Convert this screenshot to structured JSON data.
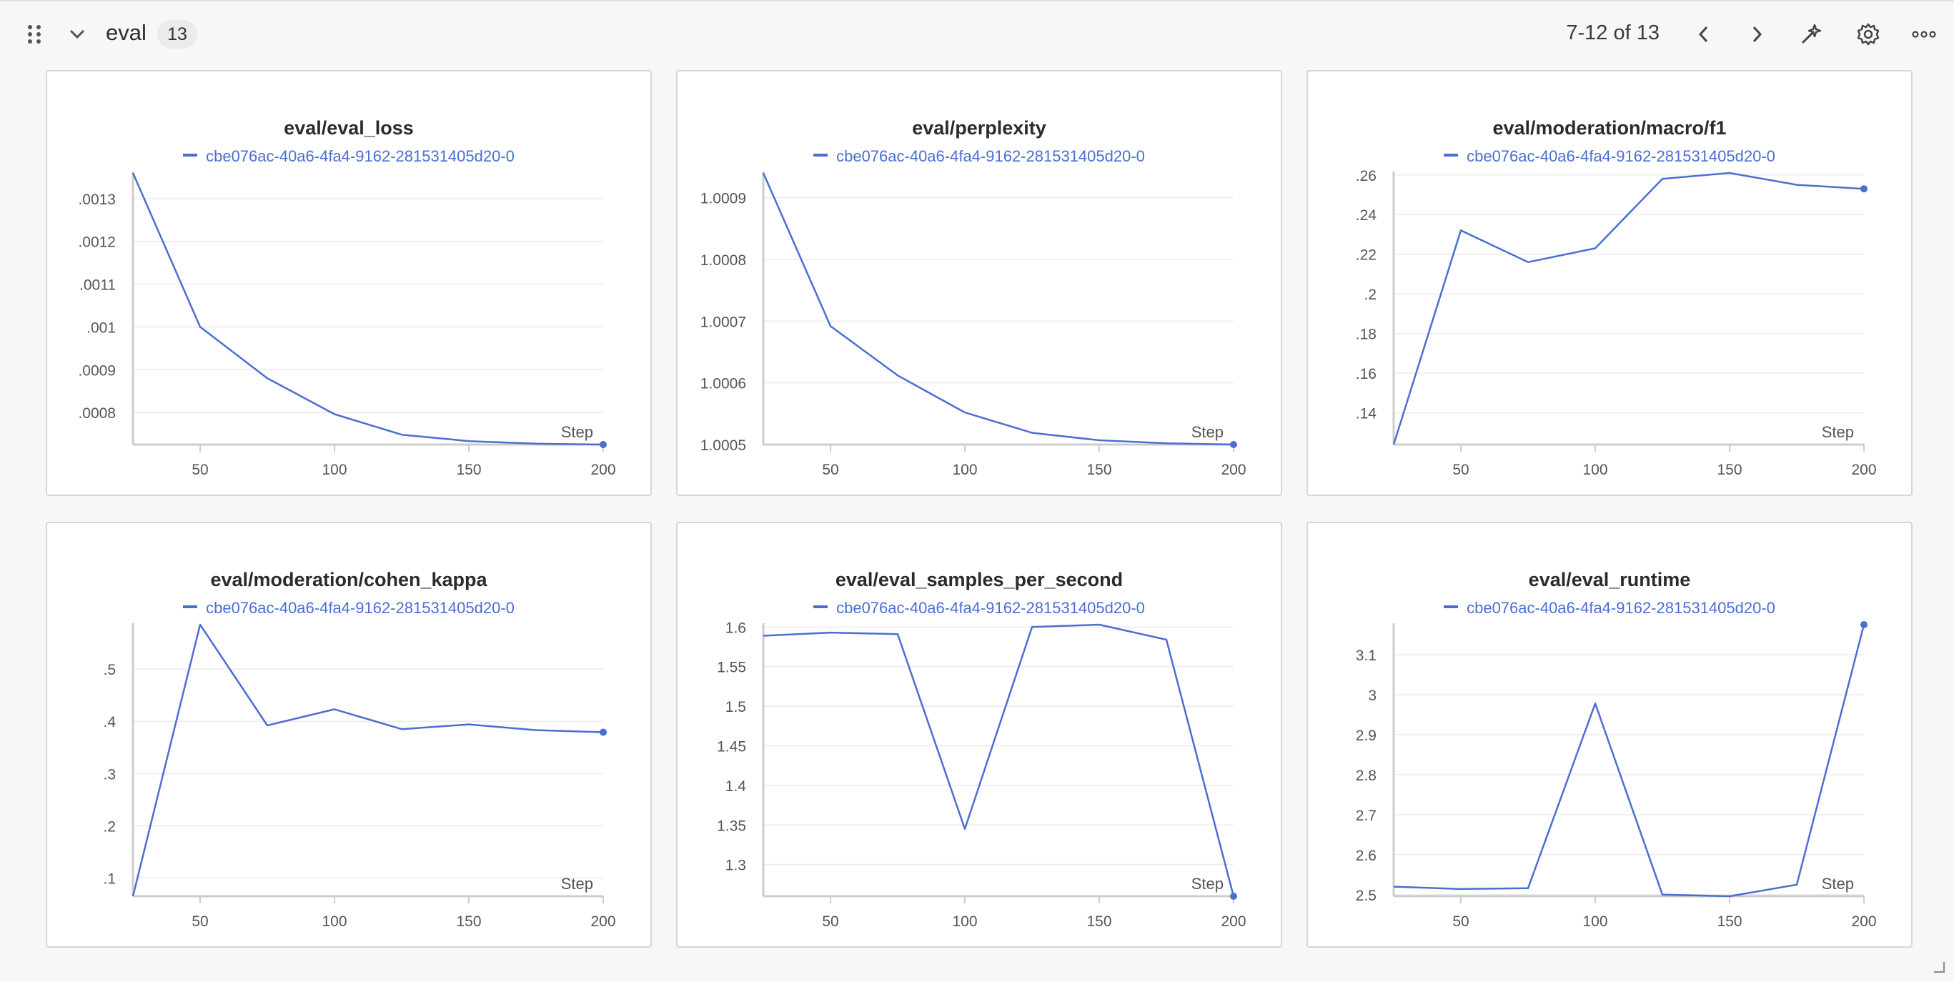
{
  "header": {
    "section_title": "eval",
    "count": "13",
    "pager": "7-12 of 13",
    "icons": [
      "drag-handle-icon",
      "chevron-down-icon",
      "chevron-left-icon",
      "chevron-right-icon",
      "magic-wand-icon",
      "gear-icon",
      "more-horizontal-icon"
    ]
  },
  "colors": {
    "series": "#4a6fd1",
    "grid": "#ececec",
    "axis": "#cccccc"
  },
  "chart_data": [
    {
      "type": "line",
      "title": "eval/eval_loss",
      "series_name": "cbe076ac-40a6-4fa4-9162-281531405d20-0",
      "xlabel": "Step",
      "x": [
        25,
        50,
        75,
        100,
        125,
        150,
        175,
        200
      ],
      "values": [
        0.00136,
        0.001,
        0.00088,
        0.000796,
        0.000748,
        0.000733,
        0.000727,
        0.000725
      ],
      "xlim": [
        25,
        200
      ],
      "xticks": [
        50,
        100,
        150,
        200
      ],
      "ylim": [
        0.000725,
        0.00136
      ],
      "yticks": [
        0.0008,
        0.0009,
        0.001,
        0.0011,
        0.0012,
        0.0013
      ],
      "ytick_labels": [
        ".0008",
        ".0009",
        ".001",
        ".0011",
        ".0012",
        ".0013"
      ]
    },
    {
      "type": "line",
      "title": "eval/perplexity",
      "series_name": "cbe076ac-40a6-4fa4-9162-281531405d20-0",
      "xlabel": "Step",
      "x": [
        25,
        50,
        75,
        100,
        125,
        150,
        175,
        200
      ],
      "values": [
        1.00094,
        1.000692,
        1.000612,
        1.000552,
        1.000519,
        1.000507,
        1.000502,
        1.0005
      ],
      "xlim": [
        25,
        200
      ],
      "xticks": [
        50,
        100,
        150,
        200
      ],
      "ylim": [
        1.0005,
        1.00094
      ],
      "yticks": [
        1.0005,
        1.0006,
        1.0007,
        1.0008,
        1.0009
      ],
      "ytick_labels": [
        "1.0005",
        "1.0006",
        "1.0007",
        "1.0008",
        "1.0009"
      ]
    },
    {
      "type": "line",
      "title": "eval/moderation/macro/f1",
      "series_name": "cbe076ac-40a6-4fa4-9162-281531405d20-0",
      "xlabel": "Step",
      "x": [
        25,
        50,
        75,
        100,
        125,
        150,
        175,
        200
      ],
      "values": [
        0.124,
        0.232,
        0.216,
        0.223,
        0.258,
        0.261,
        0.255,
        0.253
      ],
      "xlim": [
        25,
        200
      ],
      "xticks": [
        50,
        100,
        150,
        200
      ],
      "ylim": [
        0.124,
        0.261
      ],
      "yticks": [
        0.14,
        0.16,
        0.18,
        0.2,
        0.22,
        0.24,
        0.26
      ],
      "ytick_labels": [
        ".14",
        ".16",
        ".18",
        ".2",
        ".22",
        ".24",
        ".26"
      ]
    },
    {
      "type": "line",
      "title": "eval/moderation/cohen_kappa",
      "series_name": "cbe076ac-40a6-4fa4-9162-281531405d20-0",
      "xlabel": "Step",
      "x": [
        25,
        50,
        75,
        100,
        125,
        150,
        175,
        200
      ],
      "values": [
        0.065,
        0.585,
        0.392,
        0.423,
        0.385,
        0.394,
        0.383,
        0.379
      ],
      "xlim": [
        25,
        200
      ],
      "xticks": [
        50,
        100,
        150,
        200
      ],
      "ylim": [
        0.065,
        0.585
      ],
      "yticks": [
        0.1,
        0.2,
        0.3,
        0.4,
        0.5
      ],
      "ytick_labels": [
        ".1",
        ".2",
        ".3",
        ".4",
        ".5"
      ]
    },
    {
      "type": "line",
      "title": "eval/eval_samples_per_second",
      "series_name": "cbe076ac-40a6-4fa4-9162-281531405d20-0",
      "xlabel": "Step",
      "x": [
        25,
        50,
        75,
        100,
        125,
        150,
        175,
        200
      ],
      "values": [
        1.589,
        1.593,
        1.591,
        1.345,
        1.6,
        1.603,
        1.584,
        1.26
      ],
      "xlim": [
        25,
        200
      ],
      "xticks": [
        50,
        100,
        150,
        200
      ],
      "ylim": [
        1.26,
        1.603
      ],
      "yticks": [
        1.3,
        1.35,
        1.4,
        1.45,
        1.5,
        1.55,
        1.6
      ],
      "ytick_labels": [
        "1.3",
        "1.35",
        "1.4",
        "1.45",
        "1.5",
        "1.55",
        "1.6"
      ]
    },
    {
      "type": "line",
      "title": "eval/eval_runtime",
      "series_name": "cbe076ac-40a6-4fa4-9162-281531405d20-0",
      "xlabel": "Step",
      "x": [
        25,
        50,
        75,
        100,
        125,
        150,
        175,
        200
      ],
      "values": [
        2.52,
        2.514,
        2.516,
        2.978,
        2.5,
        2.496,
        2.525,
        3.175
      ],
      "xlim": [
        25,
        200
      ],
      "xticks": [
        50,
        100,
        150,
        200
      ],
      "ylim": [
        2.496,
        3.175
      ],
      "yticks": [
        2.5,
        2.6,
        2.7,
        2.8,
        2.9,
        3,
        3.1
      ],
      "ytick_labels": [
        "2.5",
        "2.6",
        "2.7",
        "2.8",
        "2.9",
        "3",
        "3.1"
      ]
    }
  ]
}
